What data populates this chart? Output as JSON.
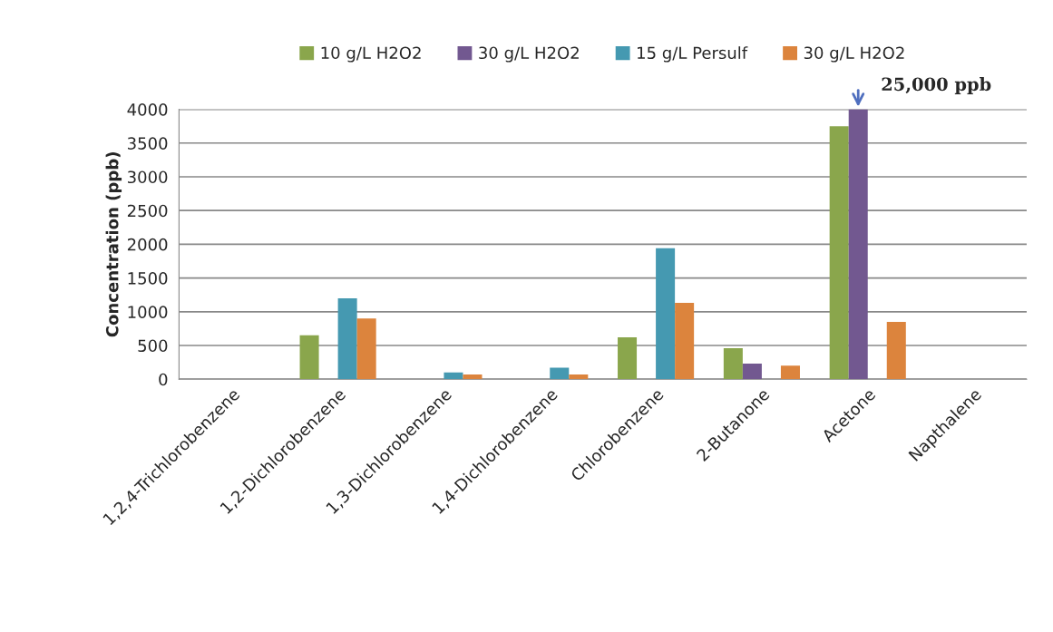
{
  "chart_data": {
    "type": "bar",
    "ylabel": "Concentration (ppb)",
    "categories": [
      "1,2,4-Trichlorobenzene",
      "1,2-Dichlorobenzene",
      "1,3-Dichlorobenzene",
      "1,4-Dichlorobenzene",
      "Chlorobenzene",
      "2-Butanone",
      "Acetone",
      "Napthalene"
    ],
    "series": [
      {
        "name": "10 g/L H2O2",
        "color": "#8aa64c",
        "values": [
          null,
          650,
          null,
          null,
          620,
          460,
          3750,
          null
        ]
      },
      {
        "name": "30 g/L H2O2",
        "color": "#725890",
        "values": [
          null,
          null,
          null,
          null,
          null,
          230,
          4000,
          null
        ]
      },
      {
        "name": "15 g/L Persulf",
        "color": "#4599b1",
        "values": [
          null,
          1200,
          100,
          170,
          1940,
          null,
          null,
          null
        ]
      },
      {
        "name": "30 g/L H2O2",
        "color": "#dc843d",
        "values": [
          null,
          900,
          70,
          70,
          1130,
          200,
          850,
          null
        ]
      }
    ],
    "ylim": [
      0,
      4000
    ],
    "yticks": [
      0,
      500,
      1000,
      1500,
      2000,
      2500,
      3000,
      3500,
      4000
    ],
    "grid": "y",
    "legend": "top",
    "annotations": [
      {
        "text": "25,000 ppb",
        "x": "Acetone",
        "y": 4000
      }
    ]
  }
}
